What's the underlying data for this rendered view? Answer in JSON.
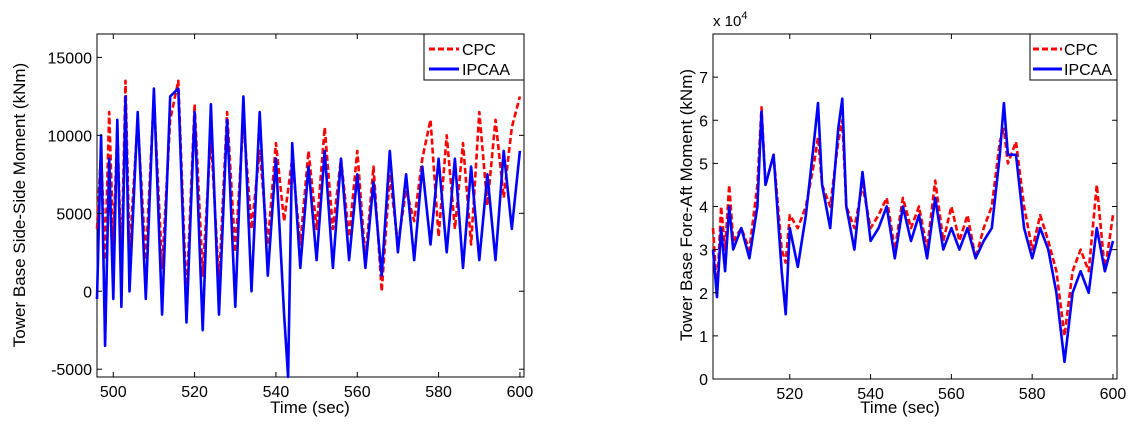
{
  "chart_data": [
    {
      "type": "line",
      "xlabel": "Time (sec)",
      "ylabel": "Tower Base Side-Side Moment (kNm)",
      "xlim": [
        496,
        601
      ],
      "ylim": [
        -5500,
        16500
      ],
      "xticks": [
        500,
        520,
        540,
        560,
        580,
        600
      ],
      "yticks": [
        -5000,
        0,
        5000,
        10000,
        15000
      ],
      "ytick_labels": [
        "-5000",
        "0",
        "5000",
        "10000",
        "15000"
      ],
      "exponent_label": "",
      "legend": {
        "position": "top-right",
        "entries": [
          "CPC",
          "IPCAA"
        ]
      },
      "grid": false,
      "series": [
        {
          "name": "CPC",
          "color": "#ff0000",
          "style": "dashed",
          "x": [
            496,
            497,
            498,
            499,
            500,
            501,
            502,
            503,
            504,
            506,
            508,
            510,
            512,
            514,
            516,
            518,
            520,
            522,
            524,
            526,
            528,
            530,
            532,
            534,
            536,
            538,
            540,
            542,
            544,
            546,
            548,
            550,
            552,
            554,
            556,
            558,
            560,
            562,
            564,
            566,
            568,
            570,
            572,
            574,
            576,
            578,
            580,
            582,
            584,
            586,
            588,
            590,
            592,
            594,
            596,
            598,
            600
          ],
          "y": [
            4000,
            9000,
            2000,
            11500,
            3000,
            10500,
            1500,
            13500,
            2500,
            11000,
            2000,
            12500,
            1500,
            11000,
            13500,
            -500,
            12000,
            1000,
            10000,
            500,
            11500,
            2500,
            11000,
            4000,
            9000,
            3000,
            9500,
            4500,
            8500,
            3000,
            9000,
            4000,
            10500,
            4000,
            8500,
            3500,
            9000,
            2000,
            8000,
            0,
            7500,
            3000,
            6500,
            4500,
            8500,
            11000,
            3500,
            10000,
            4000,
            9500,
            3000,
            11500,
            5500,
            11000,
            6000,
            10500,
            12500
          ]
        },
        {
          "name": "IPCAA",
          "color": "#0000ff",
          "style": "solid",
          "x": [
            496,
            497,
            498,
            499,
            500,
            501,
            502,
            503,
            504,
            506,
            508,
            510,
            512,
            514,
            516,
            518,
            520,
            522,
            524,
            526,
            528,
            530,
            532,
            534,
            536,
            538,
            540,
            542,
            543,
            544,
            546,
            548,
            550,
            552,
            554,
            556,
            558,
            560,
            562,
            564,
            566,
            568,
            570,
            572,
            574,
            576,
            578,
            580,
            582,
            584,
            586,
            588,
            590,
            592,
            594,
            596,
            598,
            600
          ],
          "y": [
            -500,
            10000,
            -3500,
            8500,
            -500,
            11000,
            -1000,
            12500,
            0,
            11500,
            -500,
            13000,
            -1500,
            12500,
            13000,
            -2000,
            11500,
            -2500,
            12000,
            -1500,
            11000,
            -1000,
            12500,
            0,
            11500,
            1000,
            8500,
            -1500,
            -5500,
            9500,
            1500,
            8000,
            2000,
            9000,
            1500,
            8500,
            2000,
            7500,
            1500,
            7000,
            1000,
            9000,
            2500,
            7500,
            2000,
            8000,
            3000,
            8500,
            2500,
            8500,
            1500,
            8000,
            2000,
            7500,
            2000,
            9000,
            4000,
            9000
          ]
        }
      ]
    },
    {
      "type": "line",
      "xlabel": "Time (sec)",
      "ylabel": "Tower Base Fore-Aft Moment (kNm)",
      "xlim": [
        501,
        601
      ],
      "ylim": [
        0,
        8
      ],
      "xticks": [
        520,
        540,
        560,
        580,
        600
      ],
      "yticks": [
        0,
        1,
        2,
        3,
        4,
        5,
        6,
        7
      ],
      "ytick_labels": [
        "0",
        "1",
        "2",
        "3",
        "4",
        "5",
        "6",
        "7"
      ],
      "exponent_label": "x 10",
      "exponent_power": "4",
      "legend": {
        "position": "top-right",
        "entries": [
          "CPC",
          "IPCAA"
        ]
      },
      "grid": false,
      "series": [
        {
          "name": "CPC",
          "color": "#ff0000",
          "style": "dashed",
          "x": [
            501,
            502,
            503,
            504,
            505,
            506,
            508,
            510,
            512,
            513,
            514,
            516,
            518,
            519,
            520,
            522,
            524,
            526,
            527,
            528,
            530,
            532,
            533,
            534,
            536,
            538,
            540,
            542,
            544,
            546,
            548,
            550,
            552,
            554,
            556,
            558,
            560,
            562,
            564,
            566,
            568,
            570,
            572,
            573,
            574,
            576,
            578,
            580,
            582,
            584,
            586,
            588,
            590,
            592,
            594,
            596,
            598,
            600
          ],
          "y": [
            3.5,
            2.0,
            4.0,
            3.0,
            4.5,
            3.2,
            3.5,
            3.0,
            4.5,
            6.3,
            4.5,
            5.2,
            3.0,
            2.7,
            3.8,
            3.5,
            4.0,
            5.0,
            5.6,
            4.5,
            4.0,
            5.5,
            6.0,
            4.0,
            3.5,
            4.5,
            3.5,
            3.8,
            4.2,
            3.0,
            4.2,
            3.5,
            4.0,
            3.0,
            4.6,
            3.2,
            4.0,
            3.2,
            3.8,
            2.8,
            3.5,
            4.0,
            5.5,
            5.8,
            5.0,
            5.5,
            4.0,
            3.0,
            3.8,
            3.2,
            2.5,
            1.0,
            2.5,
            3.0,
            2.5,
            4.5,
            2.5,
            3.8
          ]
        },
        {
          "name": "IPCAA",
          "color": "#0000ff",
          "style": "solid",
          "x": [
            501,
            502,
            503,
            504,
            505,
            506,
            508,
            510,
            512,
            513,
            514,
            516,
            518,
            519,
            520,
            522,
            524,
            526,
            527,
            528,
            530,
            532,
            533,
            534,
            536,
            538,
            540,
            542,
            544,
            546,
            548,
            550,
            552,
            554,
            556,
            558,
            560,
            562,
            564,
            566,
            568,
            570,
            572,
            573,
            574,
            576,
            578,
            580,
            582,
            584,
            586,
            588,
            590,
            592,
            594,
            596,
            598,
            600
          ],
          "y": [
            3.0,
            1.9,
            3.5,
            2.5,
            4.0,
            3.0,
            3.5,
            2.8,
            4.0,
            6.2,
            4.5,
            5.2,
            2.5,
            1.5,
            3.5,
            2.6,
            3.8,
            5.5,
            6.4,
            4.5,
            3.5,
            5.8,
            6.5,
            4.0,
            3.0,
            4.8,
            3.2,
            3.5,
            4.0,
            2.8,
            4.0,
            3.2,
            3.8,
            2.8,
            4.2,
            3.0,
            3.5,
            3.0,
            3.5,
            2.8,
            3.2,
            3.5,
            5.2,
            6.4,
            5.2,
            5.2,
            3.5,
            2.8,
            3.5,
            3.0,
            2.0,
            0.4,
            2.0,
            2.5,
            2.0,
            3.5,
            2.5,
            3.2
          ]
        }
      ]
    }
  ]
}
